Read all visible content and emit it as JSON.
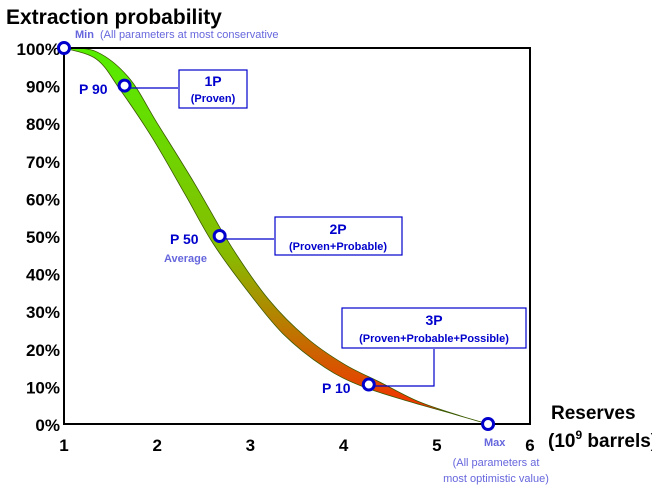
{
  "chart_data": {
    "type": "area",
    "title": "Extraction probability",
    "xlabel_line1": "Reserves",
    "xlabel_line2_pre": "(10",
    "xlabel_line2_sup": "9",
    "xlabel_line2_post": " barrels)",
    "x_ticks": [
      "1",
      "2",
      "3",
      "4",
      "5",
      "6"
    ],
    "y_ticks": [
      "0%",
      "10%",
      "20%",
      "30%",
      "40%",
      "50%",
      "60%",
      "70%",
      "80%",
      "90%",
      "100%"
    ],
    "xlim": [
      1,
      6
    ],
    "ylim": [
      0,
      100
    ],
    "grid": false,
    "band_upper": [
      {
        "x": 1.0,
        "y": 100
      },
      {
        "x": 1.35,
        "y": 99
      },
      {
        "x": 1.7,
        "y": 92
      },
      {
        "x": 2.0,
        "y": 80
      },
      {
        "x": 2.4,
        "y": 64
      },
      {
        "x": 2.8,
        "y": 47
      },
      {
        "x": 3.2,
        "y": 33
      },
      {
        "x": 3.6,
        "y": 23
      },
      {
        "x": 4.0,
        "y": 16
      },
      {
        "x": 4.4,
        "y": 11
      },
      {
        "x": 4.8,
        "y": 6
      },
      {
        "x": 5.25,
        "y": 2.2
      },
      {
        "x": 5.55,
        "y": 0
      }
    ],
    "band_lower": [
      {
        "x": 1.0,
        "y": 100
      },
      {
        "x": 1.35,
        "y": 97
      },
      {
        "x": 1.6,
        "y": 89
      },
      {
        "x": 1.95,
        "y": 76
      },
      {
        "x": 2.3,
        "y": 61
      },
      {
        "x": 2.6,
        "y": 48
      },
      {
        "x": 2.95,
        "y": 36
      },
      {
        "x": 3.35,
        "y": 24
      },
      {
        "x": 3.8,
        "y": 15
      },
      {
        "x": 4.2,
        "y": 10
      },
      {
        "x": 4.7,
        "y": 6
      },
      {
        "x": 5.2,
        "y": 2.5
      },
      {
        "x": 5.55,
        "y": 0
      }
    ],
    "points": [
      {
        "id": "min",
        "x": 1.0,
        "y": 100,
        "label": "Min",
        "note": "(All parameters at most conservative"
      },
      {
        "id": "p90",
        "x": 1.65,
        "y": 90,
        "label": "P 90"
      },
      {
        "id": "p50",
        "x": 2.67,
        "y": 50,
        "label": "P 50",
        "note": "Average"
      },
      {
        "id": "p10",
        "x": 4.27,
        "y": 10.5,
        "label": "P 10"
      },
      {
        "id": "max",
        "x": 5.55,
        "y": 0,
        "label": "Max",
        "note_line1": "(All parameters at",
        "note_line2": "most optimistic value)"
      }
    ],
    "callouts": [
      {
        "id": "1p",
        "title": "1P",
        "subtitle": "(Proven)"
      },
      {
        "id": "2p",
        "title": "2P",
        "subtitle": "(Proven+Probable)"
      },
      {
        "id": "3p",
        "title": "3P",
        "subtitle": "(Proven+Probable+Possible)"
      }
    ],
    "colors": {
      "band_top": "#55ee00",
      "band_mid": "#88bb00",
      "band_bottom": "#ff2200",
      "marker": "#0000cc",
      "label": "#0000cc",
      "note": "#6666dd",
      "axis": "#000000"
    }
  }
}
